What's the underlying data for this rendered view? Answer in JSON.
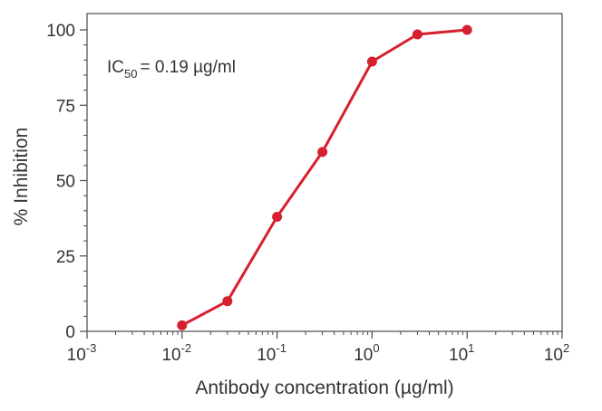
{
  "chart_data": {
    "type": "line",
    "xscale": "log",
    "x": [
      0.01,
      0.03,
      0.1,
      0.3,
      1,
      3,
      10
    ],
    "series": [
      {
        "values": [
          2,
          10,
          38,
          59.5,
          89.5,
          98.5,
          100
        ]
      }
    ],
    "xlim": [
      0.001,
      100
    ],
    "ylim": [
      0,
      100
    ],
    "xticks": [
      {
        "value": 0.001,
        "base": "10",
        "exp": "-3"
      },
      {
        "value": 0.01,
        "base": "10",
        "exp": "-2"
      },
      {
        "value": 0.1,
        "base": "10",
        "exp": "-1"
      },
      {
        "value": 1,
        "base": "10",
        "exp": "0"
      },
      {
        "value": 10,
        "base": "10",
        "exp": "1"
      },
      {
        "value": 100,
        "base": "10",
        "exp": "2"
      }
    ],
    "yticks": [
      0,
      25,
      50,
      75,
      100
    ],
    "xlabel": "Antibody concentration (µg/ml)",
    "ylabel": "% Inhibition",
    "annotation": {
      "prefix": "IC",
      "subscript": "50",
      "suffix": "= 0.19 µg/ml"
    },
    "grid": false,
    "line_color": "#d7202f",
    "axis_color": "#4a4a4a"
  }
}
